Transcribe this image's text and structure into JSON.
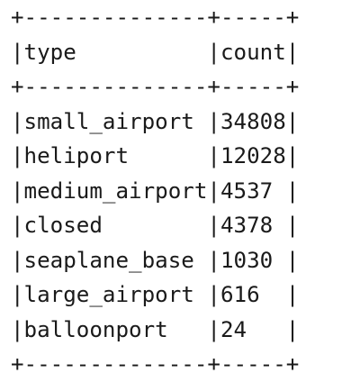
{
  "table": {
    "border": "+--------------+-----+",
    "header_line": "|type          |count|",
    "rows": [
      "|small_airport |34808|",
      "|heliport      |12028|",
      "|medium_airport|4537 |",
      "|closed        |4378 |",
      "|seaplane_base |1030 |",
      "|large_airport |616  |",
      "|balloonport   |24   |"
    ],
    "columns": [
      "type",
      "count"
    ],
    "data": [
      {
        "type": "small_airport",
        "count": 34808
      },
      {
        "type": "heliport",
        "count": 12028
      },
      {
        "type": "medium_airport",
        "count": 4537
      },
      {
        "type": "closed",
        "count": 4378
      },
      {
        "type": "seaplane_base",
        "count": 1030
      },
      {
        "type": "large_airport",
        "count": 616
      },
      {
        "type": "balloonport",
        "count": 24
      }
    ]
  }
}
